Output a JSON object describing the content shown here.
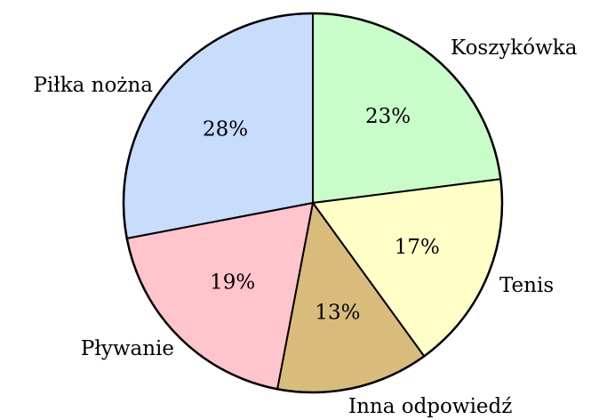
{
  "chart_data": {
    "type": "pie",
    "categories": [
      "Koszykówka",
      "Tenis",
      "Inna odpowiedź",
      "Pływanie",
      "Piłka nożna"
    ],
    "values": [
      23,
      17,
      13,
      19,
      28
    ],
    "value_labels": [
      "23%",
      "17%",
      "13%",
      "19%",
      "28%"
    ],
    "colors": [
      "#c8fcc8",
      "#ffffc8",
      "#d9bc7c",
      "#ffc4cc",
      "#c8dcfc"
    ]
  }
}
